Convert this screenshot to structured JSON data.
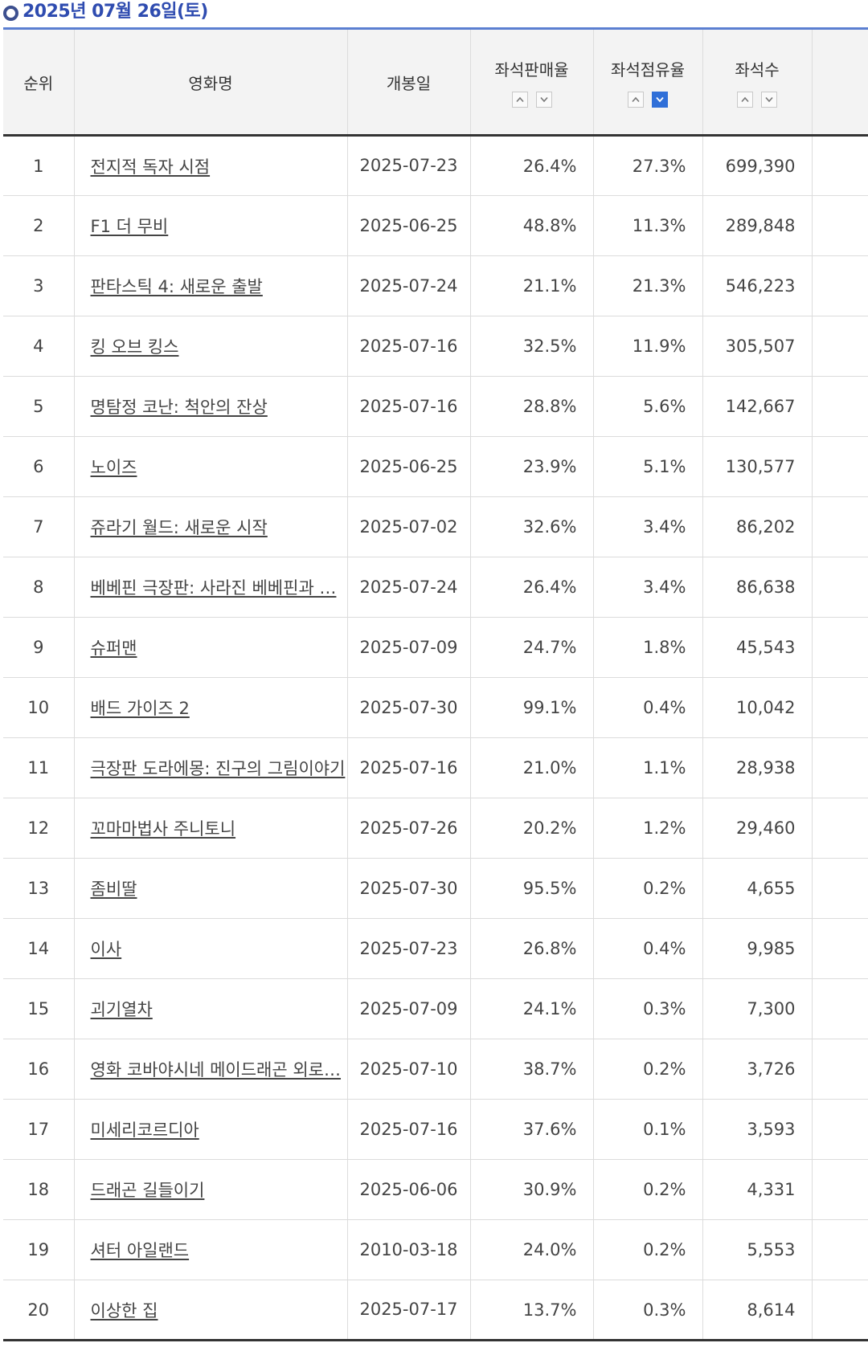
{
  "title": "2025년 07월 26일(토)",
  "headers": {
    "rank": "순위",
    "name": "영화명",
    "open_date": "개봉일",
    "seat_sales_rate": "좌석판매율",
    "seat_share": "좌석점유율",
    "seats": "좌석수"
  },
  "sort": {
    "active_column": "seat_share",
    "active_direction": "descending",
    "icons": [
      "chevron-up-icon",
      "chevron-down-icon"
    ],
    "active_color": "#2f6fd8"
  },
  "rows": [
    {
      "rank": "1",
      "name": "전지적 독자 시점",
      "date": "2025-07-23",
      "sales": "26.4%",
      "share": "27.3%",
      "seats": "699,390"
    },
    {
      "rank": "2",
      "name": "F1 더 무비",
      "date": "2025-06-25",
      "sales": "48.8%",
      "share": "11.3%",
      "seats": "289,848"
    },
    {
      "rank": "3",
      "name": "판타스틱 4: 새로운 출발",
      "date": "2025-07-24",
      "sales": "21.1%",
      "share": "21.3%",
      "seats": "546,223"
    },
    {
      "rank": "4",
      "name": "킹 오브 킹스",
      "date": "2025-07-16",
      "sales": "32.5%",
      "share": "11.9%",
      "seats": "305,507"
    },
    {
      "rank": "5",
      "name": "명탐정 코난: 척안의 잔상",
      "date": "2025-07-16",
      "sales": "28.8%",
      "share": "5.6%",
      "seats": "142,667"
    },
    {
      "rank": "6",
      "name": "노이즈",
      "date": "2025-06-25",
      "sales": "23.9%",
      "share": "5.1%",
      "seats": "130,577"
    },
    {
      "rank": "7",
      "name": "쥬라기 월드: 새로운 시작",
      "date": "2025-07-02",
      "sales": "32.6%",
      "share": "3.4%",
      "seats": "86,202"
    },
    {
      "rank": "8",
      "name": "베베핀 극장판: 사라진 베베핀과 …",
      "date": "2025-07-24",
      "sales": "26.4%",
      "share": "3.4%",
      "seats": "86,638"
    },
    {
      "rank": "9",
      "name": "슈퍼맨",
      "date": "2025-07-09",
      "sales": "24.7%",
      "share": "1.8%",
      "seats": "45,543"
    },
    {
      "rank": "10",
      "name": "배드 가이즈 2",
      "date": "2025-07-30",
      "sales": "99.1%",
      "share": "0.4%",
      "seats": "10,042"
    },
    {
      "rank": "11",
      "name": "극장판 도라에몽: 진구의 그림이야기",
      "date": "2025-07-16",
      "sales": "21.0%",
      "share": "1.1%",
      "seats": "28,938"
    },
    {
      "rank": "12",
      "name": "꼬마마법사 주니토니",
      "date": "2025-07-26",
      "sales": "20.2%",
      "share": "1.2%",
      "seats": "29,460"
    },
    {
      "rank": "13",
      "name": "좀비딸",
      "date": "2025-07-30",
      "sales": "95.5%",
      "share": "0.2%",
      "seats": "4,655"
    },
    {
      "rank": "14",
      "name": "이사",
      "date": "2025-07-23",
      "sales": "26.8%",
      "share": "0.4%",
      "seats": "9,985"
    },
    {
      "rank": "15",
      "name": "괴기열차",
      "date": "2025-07-09",
      "sales": "24.1%",
      "share": "0.3%",
      "seats": "7,300"
    },
    {
      "rank": "16",
      "name": "영화 코바야시네 메이드래곤 외로…",
      "date": "2025-07-10",
      "sales": "38.7%",
      "share": "0.2%",
      "seats": "3,726"
    },
    {
      "rank": "17",
      "name": "미세리코르디아",
      "date": "2025-07-16",
      "sales": "37.6%",
      "share": "0.1%",
      "seats": "3,593"
    },
    {
      "rank": "18",
      "name": "드래곤 길들이기",
      "date": "2025-06-06",
      "sales": "30.9%",
      "share": "0.2%",
      "seats": "4,331"
    },
    {
      "rank": "19",
      "name": "셔터 아일랜드",
      "date": "2010-03-18",
      "sales": "24.0%",
      "share": "0.2%",
      "seats": "5,553"
    },
    {
      "rank": "20",
      "name": "이상한 집",
      "date": "2025-07-17",
      "sales": "13.7%",
      "share": "0.3%",
      "seats": "8,614"
    }
  ]
}
